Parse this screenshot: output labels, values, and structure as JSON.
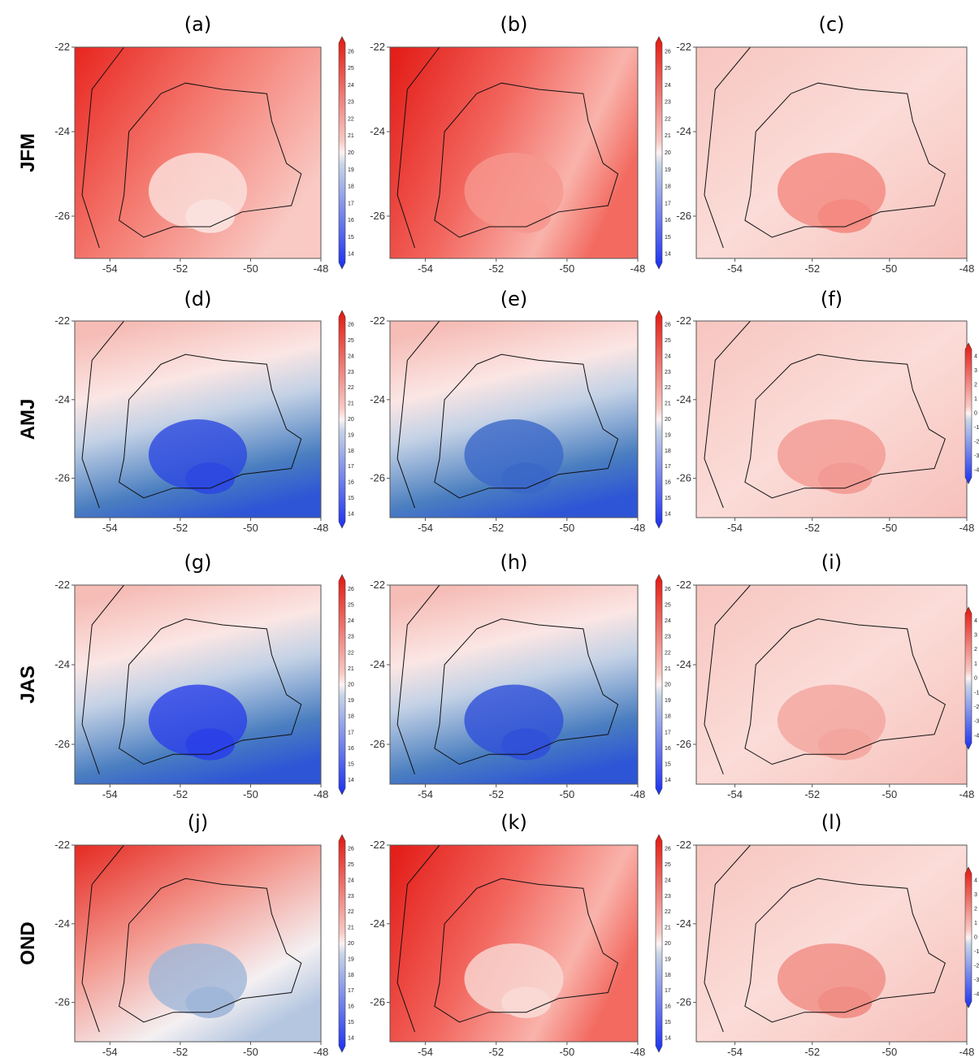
{
  "row_labels": [
    "JFM",
    "AMJ",
    "JAS",
    "OND"
  ],
  "panels": [
    {
      "label": "(a)",
      "x_ticks": [
        -54,
        -52,
        -50,
        -48
      ],
      "y_ticks": [
        -22,
        -24,
        -26
      ],
      "colorbar": [
        26,
        25,
        24,
        23,
        22,
        21,
        20,
        19,
        18,
        17,
        16,
        15,
        14
      ]
    },
    {
      "label": "(b)",
      "x_ticks": [
        -54,
        -52,
        -50,
        -48
      ],
      "y_ticks": [
        -22,
        -24,
        -26
      ],
      "colorbar": [
        26,
        25,
        24,
        23,
        22,
        21,
        20,
        19,
        18,
        17,
        16,
        15,
        14
      ]
    },
    {
      "label": "(c)",
      "x_ticks": [
        -54,
        -52,
        -50,
        -48
      ],
      "y_ticks": [
        -22,
        -24,
        -26
      ],
      "colorbar": []
    },
    {
      "label": "(d)",
      "x_ticks": [
        -54,
        -52,
        -50,
        -48
      ],
      "y_ticks": [
        -22,
        -24,
        -26
      ],
      "colorbar": [
        26,
        25,
        24,
        23,
        22,
        21,
        20,
        19,
        18,
        17,
        16,
        15,
        14
      ]
    },
    {
      "label": "(e)",
      "x_ticks": [
        -54,
        -52,
        -50,
        -48
      ],
      "y_ticks": [
        -22,
        -24,
        -26
      ],
      "colorbar": [
        26,
        25,
        24,
        23,
        22,
        21,
        20,
        19,
        18,
        17,
        16,
        15,
        14
      ]
    },
    {
      "label": "(f)",
      "x_ticks": [
        -54,
        -52,
        -50,
        -48
      ],
      "y_ticks": [
        -22,
        -24,
        -26
      ],
      "colorbar": [
        4,
        3,
        2,
        1,
        0,
        -1,
        -2,
        -3,
        -4
      ]
    },
    {
      "label": "(g)",
      "x_ticks": [
        -54,
        -52,
        -50,
        -48
      ],
      "y_ticks": [
        -22,
        -24,
        -26
      ],
      "colorbar": [
        26,
        25,
        24,
        23,
        22,
        21,
        20,
        19,
        18,
        17,
        16,
        15,
        14
      ]
    },
    {
      "label": "(h)",
      "x_ticks": [
        -54,
        -52,
        -50,
        -48
      ],
      "y_ticks": [
        -22,
        -24,
        -26
      ],
      "colorbar": [
        26,
        25,
        24,
        23,
        22,
        21,
        20,
        19,
        18,
        17,
        16,
        15,
        14
      ]
    },
    {
      "label": "(i)",
      "x_ticks": [
        -54,
        -52,
        -50,
        -48
      ],
      "y_ticks": [
        -22,
        -24,
        -26
      ],
      "colorbar": [
        4,
        3,
        2,
        1,
        0,
        -1,
        -2,
        -3,
        -4
      ]
    },
    {
      "label": "(j)",
      "x_ticks": [
        -54,
        -52,
        -50,
        -48
      ],
      "y_ticks": [
        -22,
        -24,
        -26
      ],
      "colorbar": [
        26,
        25,
        24,
        23,
        22,
        21,
        20,
        19,
        18,
        17,
        16,
        15,
        14
      ]
    },
    {
      "label": "(k)",
      "x_ticks": [
        -54,
        -52,
        -50,
        -48
      ],
      "y_ticks": [
        -22,
        -24,
        -26
      ],
      "colorbar": [
        26,
        25,
        24,
        23,
        22,
        21,
        20,
        19,
        18,
        17,
        16,
        15,
        14
      ]
    },
    {
      "label": "(l)",
      "x_ticks": [
        -54,
        -52,
        -50,
        -48
      ],
      "y_ticks": [
        -22,
        -24,
        -26
      ],
      "colorbar": [
        4,
        3,
        2,
        1,
        0,
        -1,
        -2,
        -3,
        -4
      ]
    }
  ]
}
